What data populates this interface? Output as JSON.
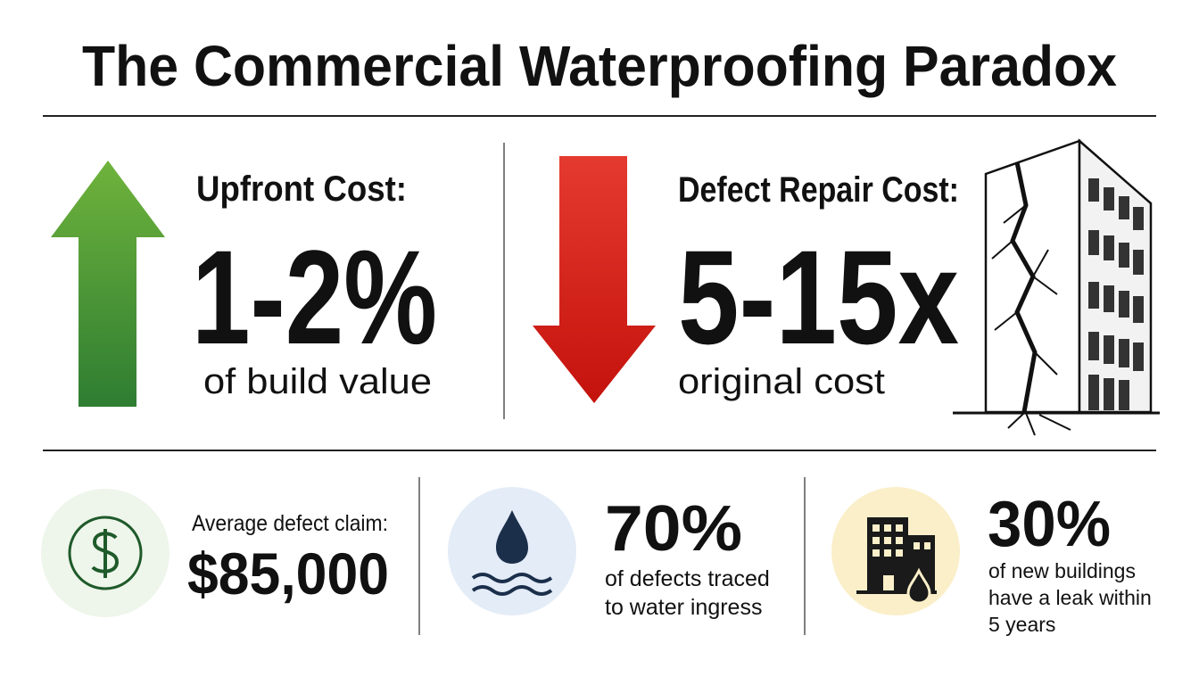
{
  "title": "The Commercial Waterproofing Paradox",
  "panels": [
    {
      "label": "Upfront Cost:",
      "value": "1-2%",
      "caption": "of build value"
    },
    {
      "label": "Defect Repair Cost:",
      "value": "5-15x",
      "caption": "original cost"
    }
  ],
  "stats": [
    {
      "label": "Average defect claim:",
      "value": "$85,000"
    },
    {
      "value": "70%",
      "lines": [
        "of defects traced",
        "to water ingress"
      ]
    },
    {
      "value": "30%",
      "lines": [
        "of new buildings",
        "have a leak within",
        "5 years"
      ]
    }
  ]
}
